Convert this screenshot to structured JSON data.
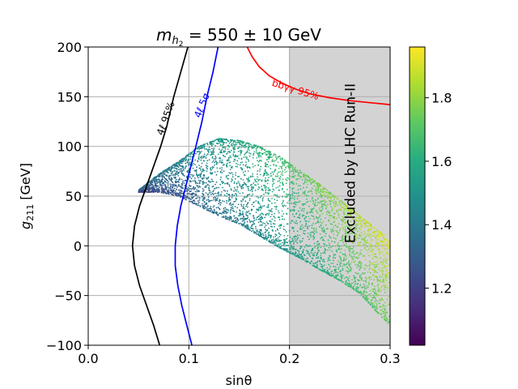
{
  "chart_data": {
    "type": "scatter",
    "title": {
      "main": "m",
      "sub": "h",
      "subsub": "2",
      "rest": " = 550 ± 10 GeV"
    },
    "xlabel": "sinθ",
    "ylabel": {
      "main": "g",
      "sub": "211",
      "rest": " [GeV]"
    },
    "xlim": [
      0.0,
      0.3
    ],
    "ylim": [
      -100,
      200
    ],
    "xticks": [
      "0.0",
      "0.1",
      "0.2",
      "0.3"
    ],
    "xtick_values": [
      0.0,
      0.1,
      0.2,
      0.3
    ],
    "yticks": [
      "−100",
      "−50",
      "0",
      "50",
      "100",
      "150",
      "200"
    ],
    "ytick_values": [
      -100,
      -50,
      0,
      50,
      100,
      150,
      200
    ],
    "grid": true,
    "excluded_region": {
      "x_from": 0.2,
      "x_to": 0.3,
      "label": "Excluded by LHC Run-II",
      "color": "#d3d3d3"
    },
    "lines": [
      {
        "name": "4ℓ 95%",
        "label": "4ℓ 95%",
        "color": "#000000",
        "points": [
          [
            0.071,
            -100
          ],
          [
            0.065,
            -80
          ],
          [
            0.058,
            -60
          ],
          [
            0.051,
            -40
          ],
          [
            0.046,
            -20
          ],
          [
            0.044,
            0
          ],
          [
            0.046,
            20
          ],
          [
            0.051,
            40
          ],
          [
            0.058,
            60
          ],
          [
            0.065,
            80
          ],
          [
            0.072,
            100
          ],
          [
            0.078,
            120
          ],
          [
            0.085,
            150
          ],
          [
            0.092,
            175
          ],
          [
            0.099,
            200
          ]
        ]
      },
      {
        "name": "4ℓ 5σ",
        "label": "4ℓ 5σ",
        "color": "#0000ff",
        "points": [
          [
            0.103,
            -100
          ],
          [
            0.098,
            -80
          ],
          [
            0.093,
            -60
          ],
          [
            0.089,
            -40
          ],
          [
            0.0865,
            -20
          ],
          [
            0.0865,
            0
          ],
          [
            0.0885,
            20
          ],
          [
            0.092,
            40
          ],
          [
            0.097,
            60
          ],
          [
            0.102,
            80
          ],
          [
            0.107,
            100
          ],
          [
            0.113,
            125
          ],
          [
            0.118,
            150
          ],
          [
            0.124,
            175
          ],
          [
            0.129,
            200
          ]
        ]
      },
      {
        "name": "bbγγ 95%",
        "label": "bbγγ 95%",
        "color": "#ff0000",
        "points": [
          [
            0.158,
            200
          ],
          [
            0.163,
            190
          ],
          [
            0.17,
            180
          ],
          [
            0.18,
            171
          ],
          [
            0.192,
            164
          ],
          [
            0.205,
            158
          ],
          [
            0.22,
            153
          ],
          [
            0.24,
            149
          ],
          [
            0.26,
            146
          ],
          [
            0.28,
            144
          ],
          [
            0.3,
            142
          ]
        ]
      }
    ],
    "scatter": {
      "colormap": "viridis",
      "band_upper": [
        [
          0.05,
          56
        ],
        [
          0.07,
          72
        ],
        [
          0.09,
          85
        ],
        [
          0.11,
          100
        ],
        [
          0.13,
          108
        ],
        [
          0.15,
          106
        ],
        [
          0.17,
          100
        ],
        [
          0.19,
          90
        ],
        [
          0.21,
          76
        ],
        [
          0.23,
          62
        ],
        [
          0.25,
          46
        ],
        [
          0.27,
          30
        ],
        [
          0.29,
          14
        ],
        [
          0.3,
          5
        ]
      ],
      "band_lower": [
        [
          0.05,
          54
        ],
        [
          0.07,
          54
        ],
        [
          0.09,
          50
        ],
        [
          0.11,
          40
        ],
        [
          0.13,
          30
        ],
        [
          0.15,
          22
        ],
        [
          0.17,
          10
        ],
        [
          0.19,
          -2
        ],
        [
          0.21,
          -12
        ],
        [
          0.23,
          -24
        ],
        [
          0.25,
          -35
        ],
        [
          0.27,
          -48
        ],
        [
          0.29,
          -70
        ],
        [
          0.3,
          -80
        ]
      ],
      "color_value_min": 1.05,
      "color_value_max": 1.92,
      "point_count": 4500
    },
    "colorbar": {
      "min": 1.02,
      "max": 1.96,
      "ticks": [
        "1.2",
        "1.4",
        "1.6",
        "1.8"
      ],
      "tick_values": [
        1.2,
        1.4,
        1.6,
        1.8
      ]
    }
  }
}
